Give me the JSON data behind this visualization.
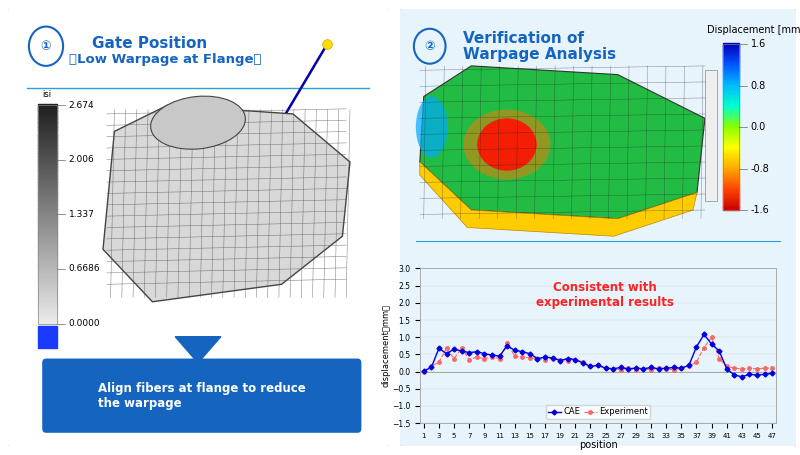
{
  "left_panel": {
    "title_num": "①",
    "title_main": "Gate Position",
    "title_sub": "（Low Warpage at Flange）",
    "colorbar_labels": [
      "2.674",
      "2.006",
      "1.337",
      "0.6686",
      "0.0000"
    ],
    "colorbar_top_label": "isi",
    "arrow_text": "Align fibers at flange to reduce\nthe warpage",
    "border_color": "#2B9FD9",
    "bg_color": "#FFFFFF"
  },
  "right_panel": {
    "title_num": "②",
    "title_line1": "Verification of",
    "title_line2": "Warpage Analysis",
    "colorbar_title": "Displacement [mm]",
    "colorbar_labels": [
      "1.6",
      "0.8",
      "0.0",
      "-0.8",
      "-1.6"
    ],
    "annotation_text": "Consistent with\nexperimental results",
    "annotation_color": "#FF2222",
    "border_color": "#2B9FD9",
    "bg_color": "#E8F4FC"
  },
  "chart": {
    "xlabel": "position",
    "ylabel": "displacement（mm）",
    "ylim": [
      -1.5,
      3.0
    ],
    "yticks": [
      -1.5,
      -1.0,
      -0.5,
      0.0,
      0.5,
      1.0,
      1.5,
      2.0,
      2.5,
      3.0
    ],
    "cae_data": [
      0.02,
      0.12,
      0.68,
      0.52,
      0.65,
      0.6,
      0.55,
      0.58,
      0.52,
      0.48,
      0.45,
      0.75,
      0.62,
      0.58,
      0.52,
      0.38,
      0.42,
      0.4,
      0.32,
      0.38,
      0.35,
      0.25,
      0.15,
      0.18,
      0.1,
      0.08,
      0.12,
      0.08,
      0.1,
      0.08,
      0.12,
      0.08,
      0.1,
      0.12,
      0.1,
      0.18,
      0.72,
      1.08,
      0.8,
      0.6,
      0.08,
      -0.1,
      -0.15,
      -0.08,
      -0.1,
      -0.08,
      -0.05
    ],
    "exp_data": [
      0.0,
      0.15,
      0.28,
      0.68,
      0.38,
      0.68,
      0.35,
      0.42,
      0.38,
      0.42,
      0.38,
      0.82,
      0.45,
      0.42,
      0.4,
      0.38,
      0.35,
      0.38,
      0.35,
      0.32,
      0.35,
      0.28,
      0.15,
      0.2,
      0.1,
      0.08,
      0.05,
      0.1,
      0.05,
      0.08,
      0.05,
      0.1,
      0.08,
      0.05,
      0.1,
      0.15,
      0.28,
      0.7,
      1.0,
      0.38,
      0.15,
      0.1,
      0.08,
      0.1,
      0.08,
      0.1,
      0.1
    ],
    "cae_color": "#0000DD",
    "exp_color": "#FF6666",
    "bg_color": "#E8F4FC",
    "grid_color": "#BBBBBB"
  },
  "title_color": "#1565C0",
  "outer_bg": "#FFFFFF"
}
